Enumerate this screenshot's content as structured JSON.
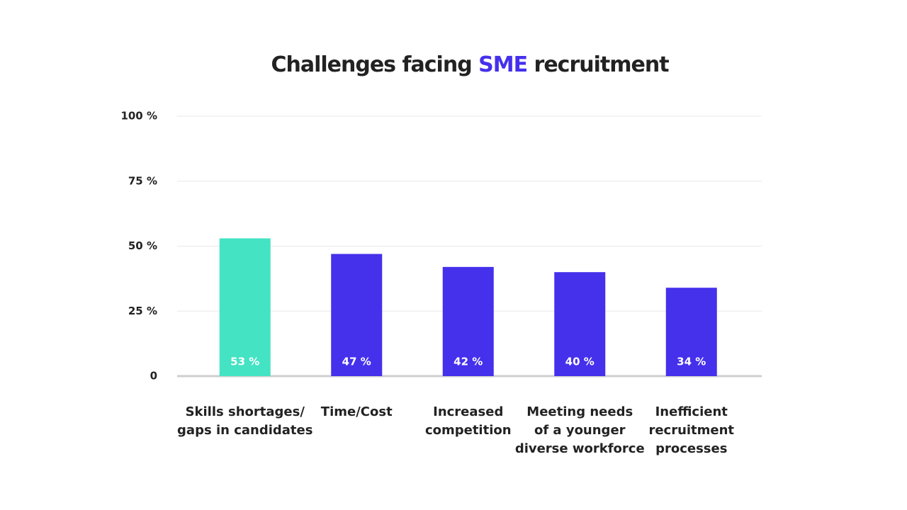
{
  "chart_data": {
    "type": "bar",
    "title": [
      "Challenges facing ",
      "SME",
      " recruitment"
    ],
    "title_colors": [
      "#222222",
      "#4530ec",
      "#222222"
    ],
    "categories": [
      "Skills shortages/\ngaps in candidates",
      "Time/Cost",
      "Increased\ncompetition",
      "Meeting needs\nof a younger\ndiverse workforce",
      "Inefficient\nrecruitment\nprocesses"
    ],
    "values": [
      53,
      47,
      42,
      40,
      34
    ],
    "value_labels": [
      "53 %",
      "47 %",
      "42 %",
      "40 %",
      "34 %"
    ],
    "colors": [
      "#43e3c3",
      "#4530ec",
      "#4530ec",
      "#4530ec",
      "#4530ec"
    ],
    "ylim": [
      0,
      100
    ],
    "yticks": [
      0,
      {
        "value": 25,
        "label": "25 %"
      },
      {
        "value": 50,
        "label": "50 %"
      },
      {
        "value": 75,
        "label": "75 %"
      },
      {
        "value": 100,
        "label": "100 %"
      }
    ],
    "grid": true
  }
}
